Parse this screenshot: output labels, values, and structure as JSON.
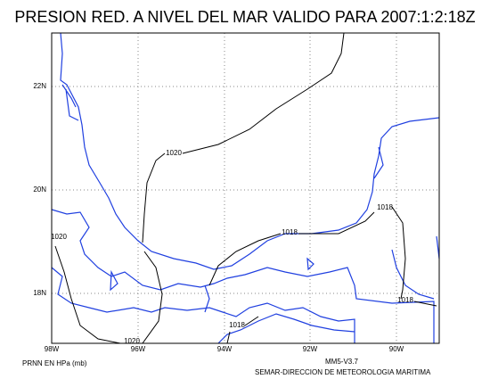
{
  "header": {
    "title": "PRESION RED. A NIVEL DEL MAR VALIDO PARA 2007:1:2:18Z"
  },
  "map": {
    "lon_labels": [
      "98W",
      "96W",
      "94W",
      "92W",
      "90W"
    ],
    "lat_labels": [
      "22N",
      "20N",
      "18N"
    ],
    "contour_labels": [
      "1020",
      "1018",
      "1018",
      "1020",
      "1018",
      "1018",
      "1020"
    ]
  },
  "footer": {
    "left": "PRNN EN HPa (mb)",
    "version": "MM5-V3.7",
    "credit": "SEMAR-DIRECCION DE METEOROLOGIA MARITIMA"
  }
}
